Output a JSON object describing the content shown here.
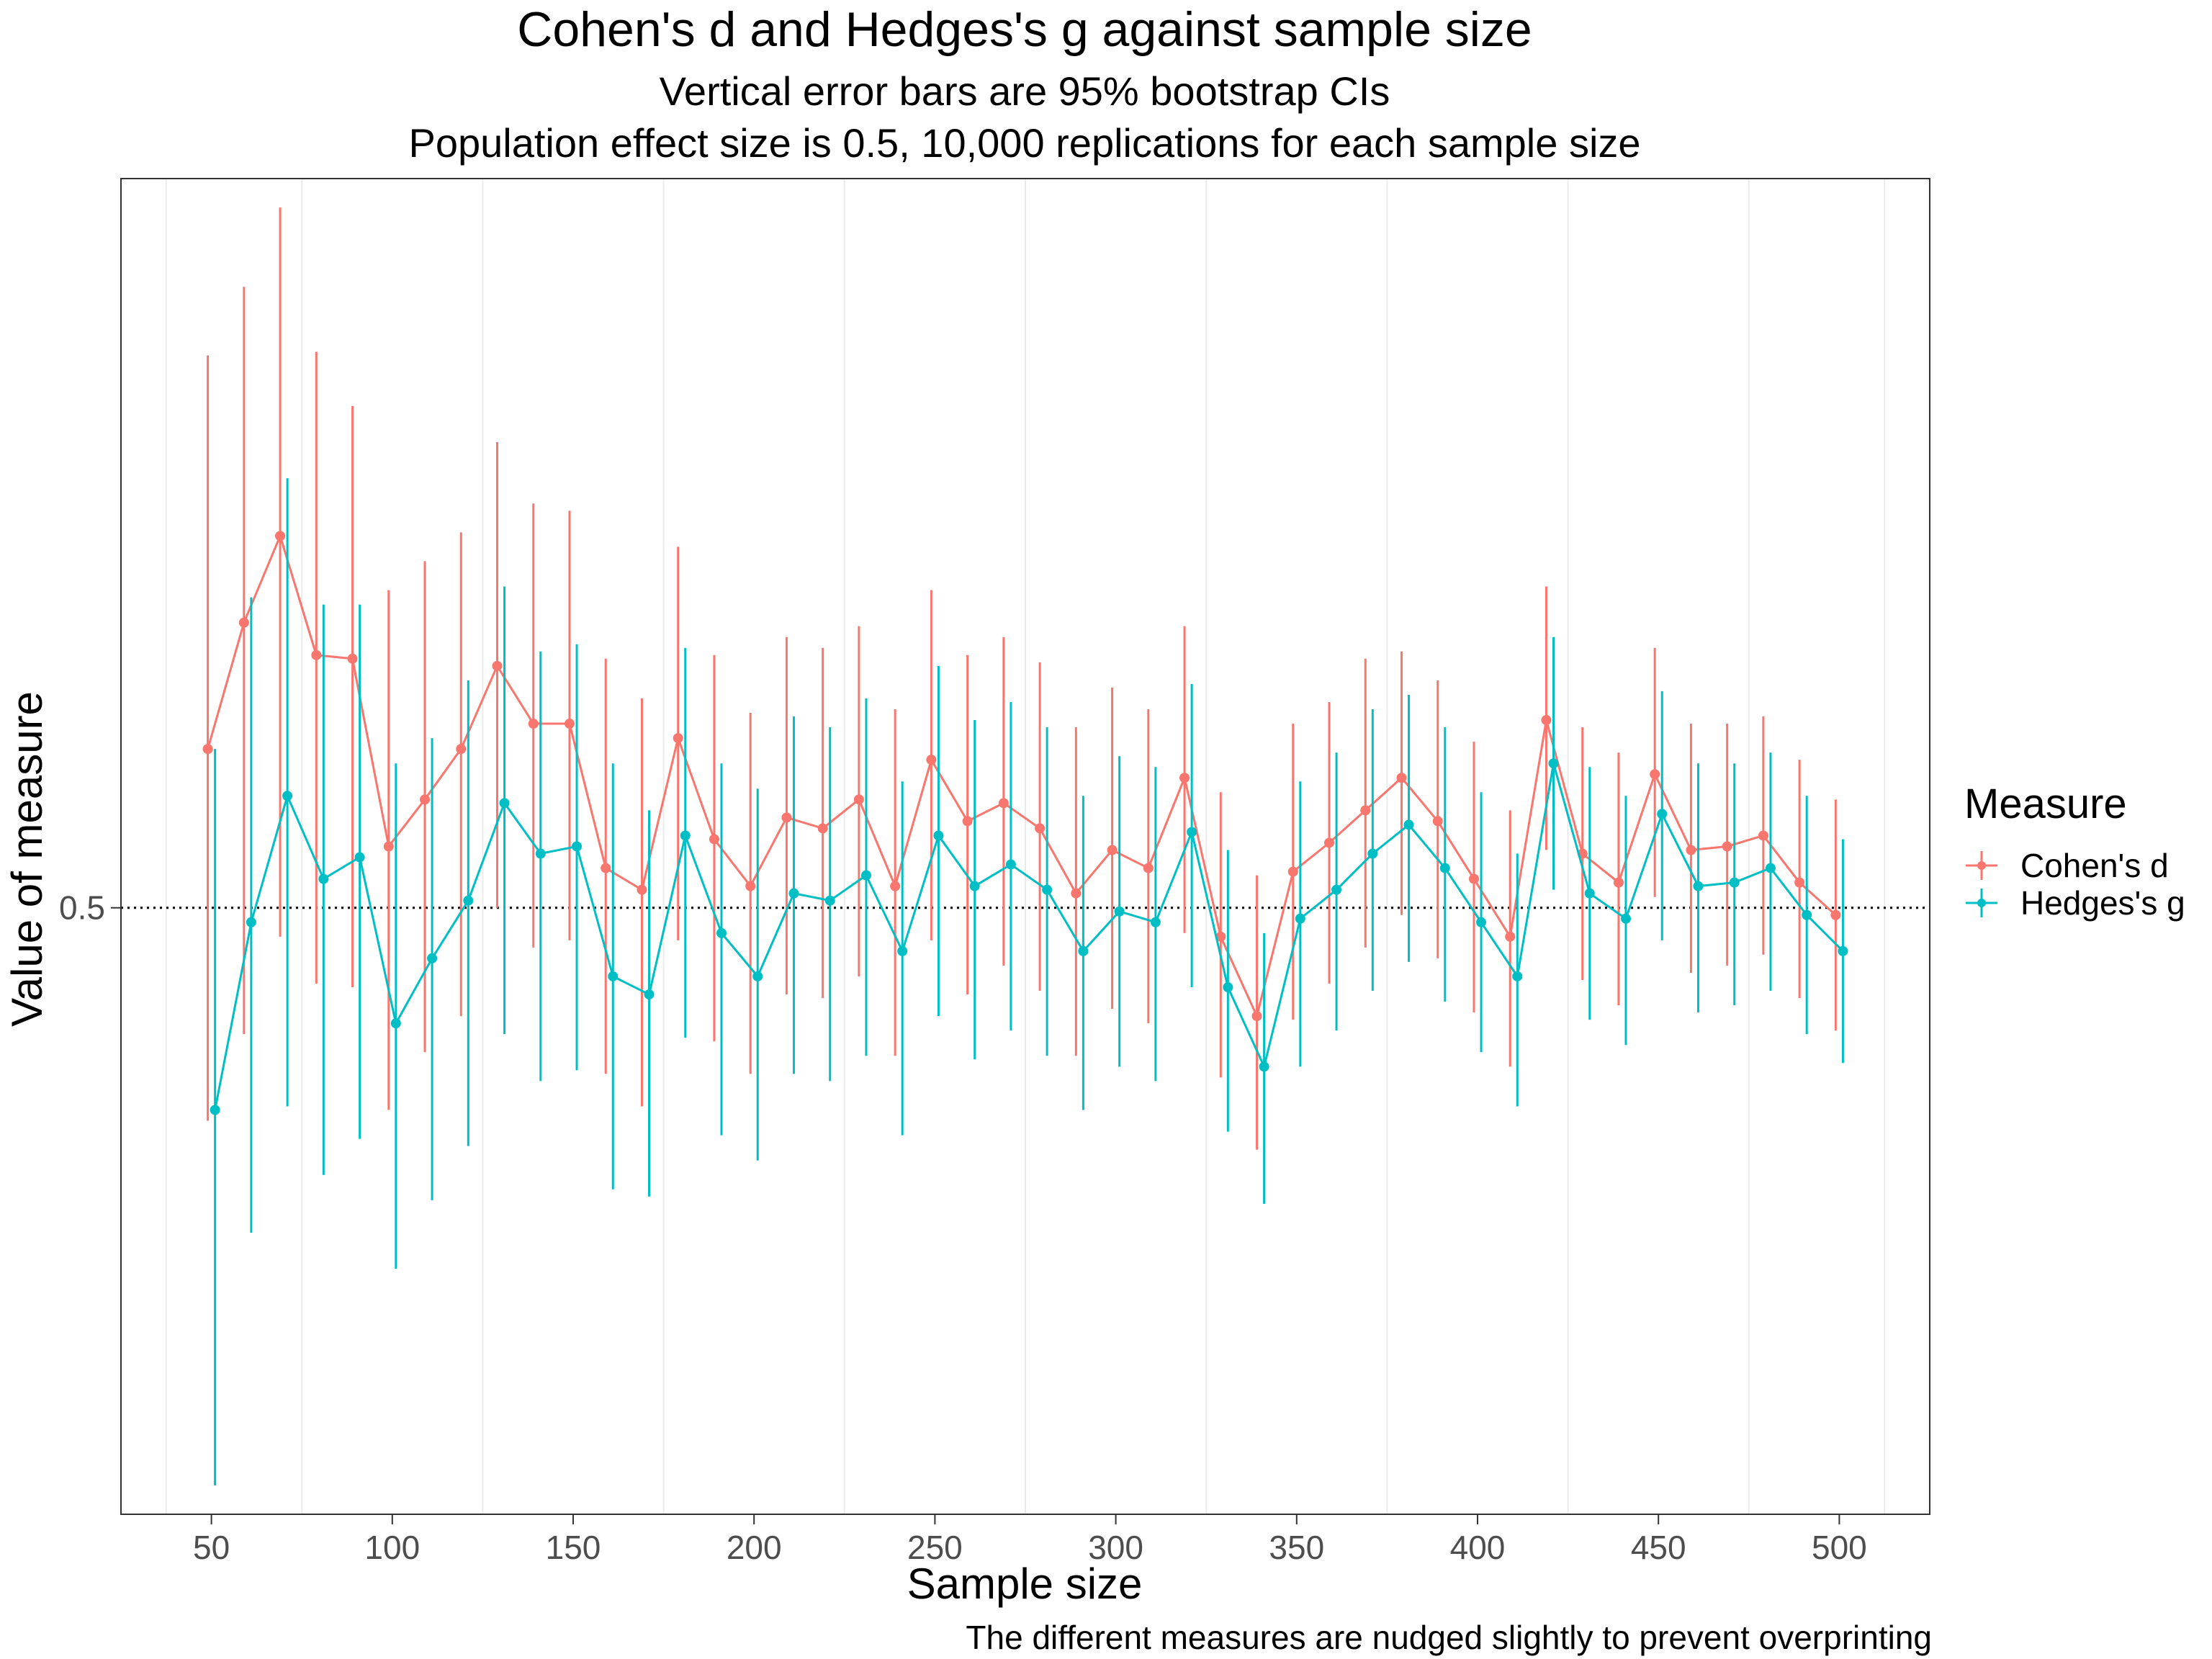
{
  "colors": {
    "cohens_d": "#F8766D",
    "hedges_g": "#00BFC4",
    "panel_border": "#333333",
    "grid_minor": "#EBEBEB",
    "reference_line": "#000000"
  },
  "chart_data": {
    "type": "line",
    "title": "Cohen's d and Hedges's g against sample size",
    "subtitle_lines": [
      "Vertical error bars are 95% bootstrap CIs",
      "Population effect size is  0.5, 10,000 replications for each sample size"
    ],
    "xlabel": "Sample size",
    "ylabel": "Value of measure",
    "caption": "The different measures are nudged slightly to prevent overprinting",
    "xlim": [
      25,
      525
    ],
    "ylim": [
      0.332,
      0.702
    ],
    "x_ticks": [
      50,
      100,
      150,
      200,
      250,
      300,
      350,
      400,
      450,
      500
    ],
    "x_tick_labels": [
      "50",
      "100",
      "150",
      "200",
      "250",
      "300",
      "350",
      "400",
      "450",
      "500"
    ],
    "y_ticks": [
      0.5
    ],
    "y_tick_labels": [
      "0.5"
    ],
    "reference_line": {
      "y": 0.5,
      "style": "dotted"
    },
    "grid": "minor vertical only",
    "legend": {
      "title": "Measure",
      "position": "right"
    },
    "x": [
      50,
      60,
      70,
      80,
      90,
      100,
      110,
      120,
      130,
      140,
      150,
      160,
      170,
      180,
      190,
      200,
      210,
      220,
      230,
      240,
      250,
      260,
      270,
      280,
      290,
      300,
      310,
      320,
      330,
      340,
      350,
      360,
      370,
      380,
      390,
      400,
      410,
      420,
      430,
      440,
      450,
      460,
      470,
      480,
      490,
      500
    ],
    "series": [
      {
        "name": "Cohen's d",
        "nudge": -1,
        "values": [
          0.544,
          0.579,
          0.603,
          0.57,
          0.569,
          0.517,
          0.53,
          0.544,
          0.567,
          0.551,
          0.551,
          0.511,
          0.505,
          0.547,
          0.519,
          0.506,
          0.525,
          0.522,
          0.53,
          0.506,
          0.541,
          0.524,
          0.529,
          0.522,
          0.504,
          0.516,
          0.511,
          0.536,
          0.492,
          0.47,
          0.51,
          0.518,
          0.527,
          0.536,
          0.524,
          0.508,
          0.492,
          0.552,
          0.515,
          0.507,
          0.537,
          0.516,
          0.517,
          0.52,
          0.507,
          0.498
        ],
        "lower": [
          0.441,
          0.465,
          0.492,
          0.479,
          0.478,
          0.444,
          0.46,
          0.47,
          0.5,
          0.489,
          0.491,
          0.454,
          0.445,
          0.491,
          0.463,
          0.454,
          0.476,
          0.475,
          0.481,
          0.459,
          0.491,
          0.476,
          0.484,
          0.477,
          0.459,
          0.472,
          0.468,
          0.493,
          0.453,
          0.433,
          0.469,
          0.479,
          0.489,
          0.498,
          0.486,
          0.471,
          0.456,
          0.516,
          0.48,
          0.473,
          0.503,
          0.482,
          0.484,
          0.487,
          0.475,
          0.466
        ],
        "upper": [
          0.653,
          0.672,
          0.694,
          0.654,
          0.639,
          0.588,
          0.596,
          0.604,
          0.629,
          0.612,
          0.61,
          0.569,
          0.558,
          0.6,
          0.57,
          0.554,
          0.575,
          0.572,
          0.578,
          0.555,
          0.588,
          0.57,
          0.575,
          0.568,
          0.55,
          0.561,
          0.555,
          0.578,
          0.532,
          0.509,
          0.551,
          0.557,
          0.569,
          0.571,
          0.563,
          0.546,
          0.527,
          0.589,
          0.55,
          0.543,
          0.572,
          0.551,
          0.551,
          0.553,
          0.541,
          0.53
        ]
      },
      {
        "name": "Hedges's g",
        "nudge": 1,
        "values": [
          0.444,
          0.496,
          0.531,
          0.508,
          0.514,
          0.468,
          0.486,
          0.502,
          0.529,
          0.515,
          0.517,
          0.481,
          0.476,
          0.52,
          0.493,
          0.481,
          0.504,
          0.502,
          0.509,
          0.488,
          0.52,
          0.506,
          0.512,
          0.505,
          0.488,
          0.499,
          0.496,
          0.521,
          0.478,
          0.456,
          0.497,
          0.505,
          0.515,
          0.523,
          0.511,
          0.496,
          0.481,
          0.54,
          0.504,
          0.497,
          0.526,
          0.506,
          0.507,
          0.511,
          0.498,
          0.488
        ],
        "lower": [
          0.34,
          0.41,
          0.445,
          0.426,
          0.436,
          0.4,
          0.419,
          0.434,
          0.465,
          0.452,
          0.455,
          0.422,
          0.42,
          0.464,
          0.437,
          0.43,
          0.454,
          0.452,
          0.459,
          0.437,
          0.47,
          0.458,
          0.466,
          0.459,
          0.444,
          0.456,
          0.452,
          0.478,
          0.438,
          0.418,
          0.456,
          0.466,
          0.477,
          0.485,
          0.474,
          0.46,
          0.445,
          0.505,
          0.469,
          0.462,
          0.491,
          0.471,
          0.473,
          0.477,
          0.465,
          0.457
        ],
        "upper": [
          0.544,
          0.586,
          0.619,
          0.584,
          0.584,
          0.54,
          0.547,
          0.563,
          0.589,
          0.571,
          0.573,
          0.54,
          0.527,
          0.572,
          0.54,
          0.533,
          0.553,
          0.55,
          0.558,
          0.535,
          0.567,
          0.552,
          0.557,
          0.55,
          0.531,
          0.542,
          0.539,
          0.562,
          0.516,
          0.493,
          0.535,
          0.543,
          0.555,
          0.559,
          0.55,
          0.532,
          0.515,
          0.575,
          0.539,
          0.531,
          0.56,
          0.54,
          0.54,
          0.543,
          0.531,
          0.519
        ]
      }
    ]
  }
}
